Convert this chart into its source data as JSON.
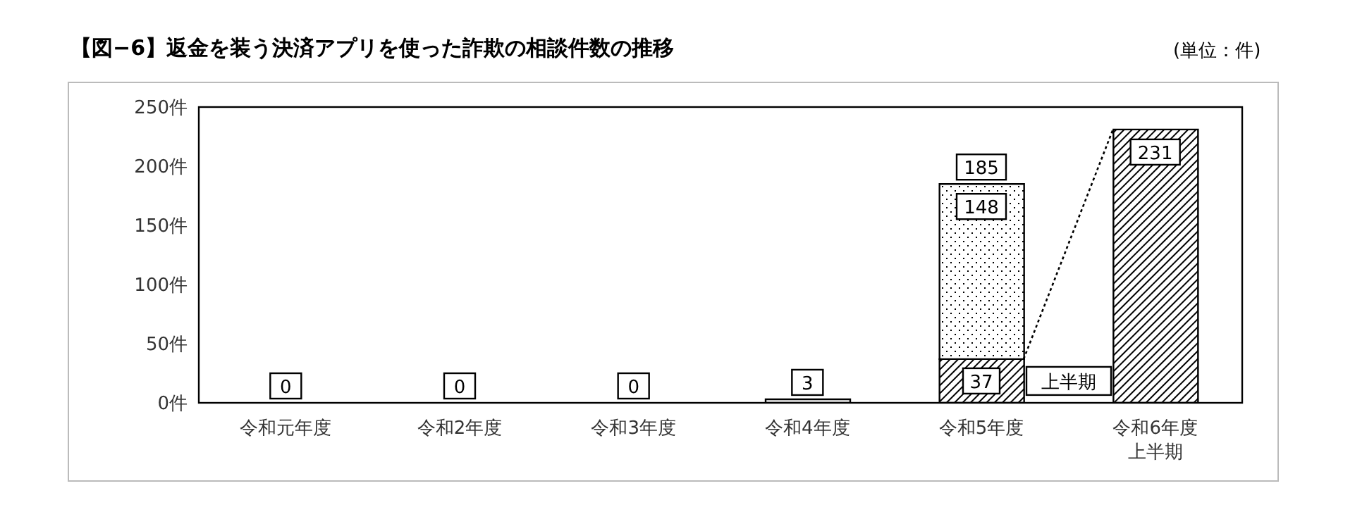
{
  "chart_data": {
    "type": "bar",
    "title": "【図−6】返金を装う決済アプリを使った詐欺の相談件数の推移",
    "annotations": [
      "(単位：件)"
    ],
    "categories": [
      "令和元年度",
      "令和2年度",
      "令和3年度",
      "令和4年度",
      "令和5年度",
      "令和6年度上半期"
    ],
    "stacked": true,
    "series": [
      {
        "name": "上半期",
        "color": "#000000",
        "colors": [
          "#ffffff",
          "#ffffff",
          "#ffffff",
          "#ffffff",
          "#000000",
          "#000000"
        ],
        "values": [
          0,
          0,
          0,
          3,
          37,
          231
        ],
        "value_labels": [
          "0",
          "0",
          "0",
          "3",
          "37",
          "231"
        ]
      },
      {
        "color": "#000000",
        "values": [
          null,
          null,
          null,
          null,
          148,
          null
        ],
        "value_labels": [
          null,
          null,
          null,
          null,
          "148",
          null
        ]
      }
    ],
    "totals": [
      null,
      null,
      null,
      null,
      "185",
      null
    ],
    "ylim": [
      0,
      250
    ],
    "yticks": [
      {
        "value": 0,
        "label": "0件"
      },
      {
        "value": 50,
        "label": "50件"
      },
      {
        "value": 100,
        "label": "100件"
      },
      {
        "value": 150,
        "label": "150件"
      },
      {
        "value": 200,
        "label": "200件"
      },
      {
        "value": 250,
        "label": "250件"
      }
    ],
    "grid": false,
    "legend": "bottom right"
  }
}
